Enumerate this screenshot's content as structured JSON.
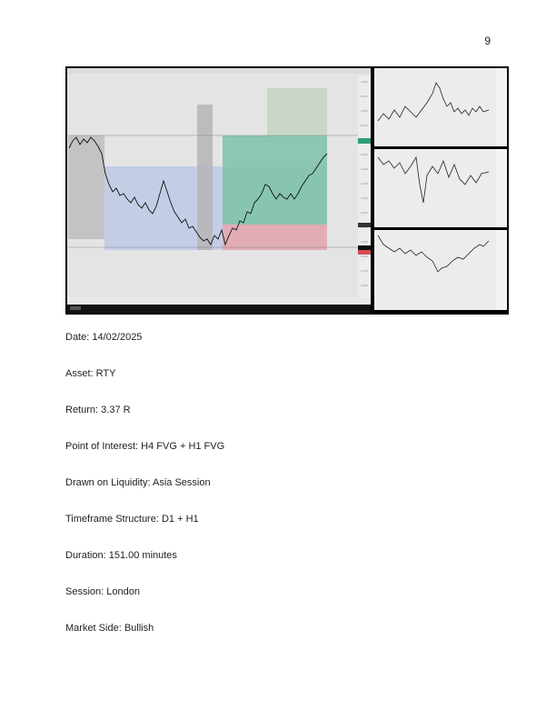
{
  "page_number": "9",
  "fields": [
    {
      "label": "Date",
      "value": "14/02/2025"
    },
    {
      "label": "Asset",
      "value": "RTY"
    },
    {
      "label": "Return",
      "value": "3.37 R"
    },
    {
      "label": "Point of Interest",
      "value": "H4 FVG + H1 FVG"
    },
    {
      "label": "Drawn on Liquidity",
      "value": "Asia Session"
    },
    {
      "label": "Timeframe Structure",
      "value": "D1 + H1"
    },
    {
      "label": "Duration",
      "value": "151.00 minutes"
    },
    {
      "label": "Session",
      "value": "London"
    },
    {
      "label": "Market Side",
      "value": "Bullish"
    }
  ]
}
